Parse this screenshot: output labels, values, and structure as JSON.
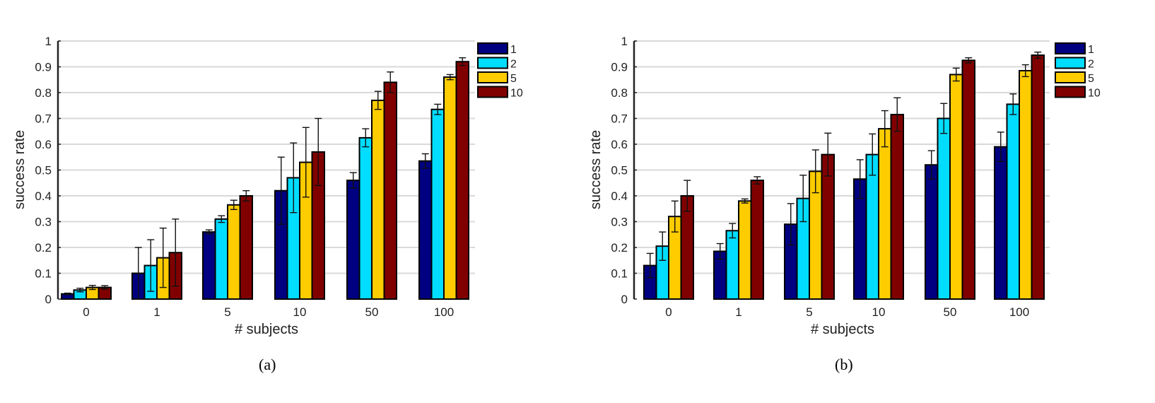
{
  "chart_data": [
    {
      "type": "bar",
      "panel_label": "(a)",
      "xlabel": "# subjects",
      "ylabel": "success rate",
      "ylim": [
        0,
        1
      ],
      "yticks": [
        "0",
        "0.1",
        "0.2",
        "0.3",
        "0.4",
        "0.5",
        "0.6",
        "0.7",
        "0.8",
        "0.9",
        "1"
      ],
      "grid": true,
      "legend_position": "top-right-outside",
      "categories": [
        "0",
        "1",
        "5",
        "10",
        "50",
        "100"
      ],
      "series": [
        {
          "name": "1",
          "color": "#000080",
          "values": [
            0.02,
            0.1,
            0.26,
            0.42,
            0.46,
            0.535
          ],
          "errors": [
            0.003,
            0.1,
            0.008,
            0.13,
            0.03,
            0.028
          ]
        },
        {
          "name": "2",
          "color": "#00DDFF",
          "values": [
            0.035,
            0.13,
            0.31,
            0.47,
            0.625,
            0.735
          ],
          "errors": [
            0.007,
            0.1,
            0.013,
            0.135,
            0.035,
            0.02
          ]
        },
        {
          "name": "5",
          "color": "#FFCC00",
          "values": [
            0.045,
            0.16,
            0.365,
            0.53,
            0.77,
            0.86
          ],
          "errors": [
            0.008,
            0.115,
            0.018,
            0.135,
            0.035,
            0.01
          ]
        },
        {
          "name": "10",
          "color": "#800000",
          "values": [
            0.045,
            0.18,
            0.4,
            0.57,
            0.84,
            0.92
          ],
          "errors": [
            0.007,
            0.13,
            0.02,
            0.13,
            0.04,
            0.015
          ]
        }
      ]
    },
    {
      "type": "bar",
      "panel_label": "(b)",
      "xlabel": "# subjects",
      "ylabel": "success rate",
      "ylim": [
        0,
        1
      ],
      "yticks": [
        "0",
        "0.1",
        "0.2",
        "0.3",
        "0.4",
        "0.5",
        "0.6",
        "0.7",
        "0.8",
        "0.9",
        "1"
      ],
      "grid": true,
      "legend_position": "top-right-outside",
      "categories": [
        "0",
        "1",
        "5",
        "10",
        "50",
        "100"
      ],
      "series": [
        {
          "name": "1",
          "color": "#000080",
          "values": [
            0.13,
            0.185,
            0.29,
            0.465,
            0.52,
            0.59
          ],
          "errors": [
            0.047,
            0.03,
            0.08,
            0.075,
            0.055,
            0.057
          ]
        },
        {
          "name": "2",
          "color": "#00DDFF",
          "values": [
            0.205,
            0.265,
            0.39,
            0.56,
            0.7,
            0.755
          ],
          "errors": [
            0.055,
            0.028,
            0.09,
            0.08,
            0.058,
            0.04
          ]
        },
        {
          "name": "5",
          "color": "#FFCC00",
          "values": [
            0.32,
            0.38,
            0.495,
            0.66,
            0.87,
            0.885
          ],
          "errors": [
            0.06,
            0.008,
            0.083,
            0.07,
            0.025,
            0.023
          ]
        },
        {
          "name": "10",
          "color": "#800000",
          "values": [
            0.4,
            0.46,
            0.56,
            0.715,
            0.925,
            0.945
          ],
          "errors": [
            0.06,
            0.014,
            0.083,
            0.065,
            0.01,
            0.012
          ]
        }
      ]
    }
  ]
}
